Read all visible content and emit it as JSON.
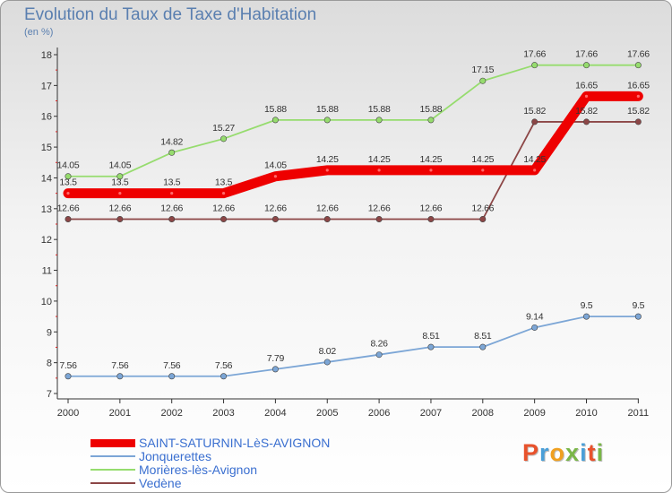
{
  "header": {
    "title": "Evolution du Taux de Taxe d'Habitation",
    "subtitle": "(en %)"
  },
  "logo": {
    "text": "Proxiti",
    "colors": [
      "#e8522c",
      "#4a9fd8",
      "#f0a020",
      "#7ab648",
      "#4a9fd8",
      "#e8522c",
      "#7ab648"
    ]
  },
  "chart_data": {
    "type": "line",
    "title": "Evolution du Taux de Taxe d'Habitation",
    "ylabel": "(en %)",
    "x": [
      "2000",
      "2001",
      "2002",
      "2003",
      "2004",
      "2005",
      "2006",
      "2007",
      "2008",
      "2009",
      "2010",
      "2011"
    ],
    "ylim": [
      7,
      18
    ],
    "yticks": [
      "7",
      "8",
      "9",
      "10",
      "11",
      "12",
      "13",
      "14",
      "15",
      "16",
      "17",
      "18"
    ],
    "grid": false,
    "legend_position": "bottom",
    "series": [
      {
        "name": "SAINT-SATURNIN-LèS-AVIGNON",
        "color": "#ee0000",
        "values": [
          13.5,
          13.5,
          13.5,
          13.5,
          14.05,
          14.25,
          14.25,
          14.25,
          14.25,
          14.25,
          16.65,
          16.65
        ],
        "labels": [
          "13.5",
          "13.5",
          "13.5",
          "13.5",
          "14.05",
          "14.25",
          "14.25",
          "14.25",
          "14.25",
          "14.25",
          "16.65",
          "16.65"
        ]
      },
      {
        "name": "Jonquerettes",
        "color": "#7ca6d6",
        "values": [
          7.56,
          7.56,
          7.56,
          7.56,
          7.79,
          8.02,
          8.26,
          8.51,
          8.51,
          9.14,
          9.5,
          9.5
        ],
        "labels": [
          "7.56",
          "7.56",
          "7.56",
          "7.56",
          "7.79",
          "8.02",
          "8.26",
          "8.51",
          "8.51",
          "9.14",
          "9.5",
          "9.5"
        ]
      },
      {
        "name": "Morières-lès-Avignon",
        "color": "#96dc6e",
        "values": [
          14.05,
          14.05,
          14.82,
          15.27,
          15.88,
          15.88,
          15.88,
          15.88,
          17.15,
          17.66,
          17.66,
          17.66
        ],
        "labels": [
          "14.05",
          "14.05",
          "14.82",
          "15.27",
          "15.88",
          "15.88",
          "15.88",
          "15.88",
          "17.15",
          "17.66",
          "17.66",
          "17.66"
        ]
      },
      {
        "name": "Vedène",
        "color": "#8c4646",
        "values": [
          12.66,
          12.66,
          12.66,
          12.66,
          12.66,
          12.66,
          12.66,
          12.66,
          12.66,
          15.82,
          15.82,
          15.82
        ],
        "labels": [
          "12.66",
          "12.66",
          "12.66",
          "12.66",
          "12.66",
          "12.66",
          "12.66",
          "12.66",
          "12.66",
          "15.82",
          "15.82",
          "15.82"
        ]
      }
    ]
  }
}
